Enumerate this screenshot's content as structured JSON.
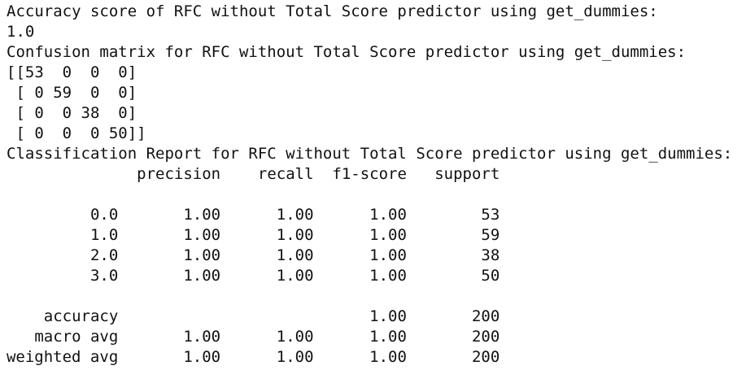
{
  "accuracy": {
    "title": "Accuracy score of RFC without Total Score predictor using get_dummies:",
    "value": "1.0"
  },
  "confusion": {
    "title": "Confusion matrix for RFC without Total Score predictor using get_dummies:",
    "rows": [
      "[[53  0  0  0]",
      " [ 0 59  0  0]",
      " [ 0  0 38  0]",
      " [ 0  0  0 50]]"
    ]
  },
  "report": {
    "title": "Classification Report for RFC without Total Score predictor using get_dummies:",
    "columns": [
      "precision",
      "recall",
      "f1-score",
      "support"
    ],
    "rows": [
      {
        "label": "0.0",
        "precision": "1.00",
        "recall": "1.00",
        "f1": "1.00",
        "support": "53"
      },
      {
        "label": "1.0",
        "precision": "1.00",
        "recall": "1.00",
        "f1": "1.00",
        "support": "59"
      },
      {
        "label": "2.0",
        "precision": "1.00",
        "recall": "1.00",
        "f1": "1.00",
        "support": "38"
      },
      {
        "label": "3.0",
        "precision": "1.00",
        "recall": "1.00",
        "f1": "1.00",
        "support": "50"
      }
    ],
    "summary": [
      {
        "label": "accuracy",
        "f1": "1.00",
        "support": "200"
      },
      {
        "label": "macro avg",
        "precision": "1.00",
        "recall": "1.00",
        "f1": "1.00",
        "support": "200"
      },
      {
        "label": "weighted avg",
        "precision": "1.00",
        "recall": "1.00",
        "f1": "1.00",
        "support": "200"
      }
    ]
  }
}
